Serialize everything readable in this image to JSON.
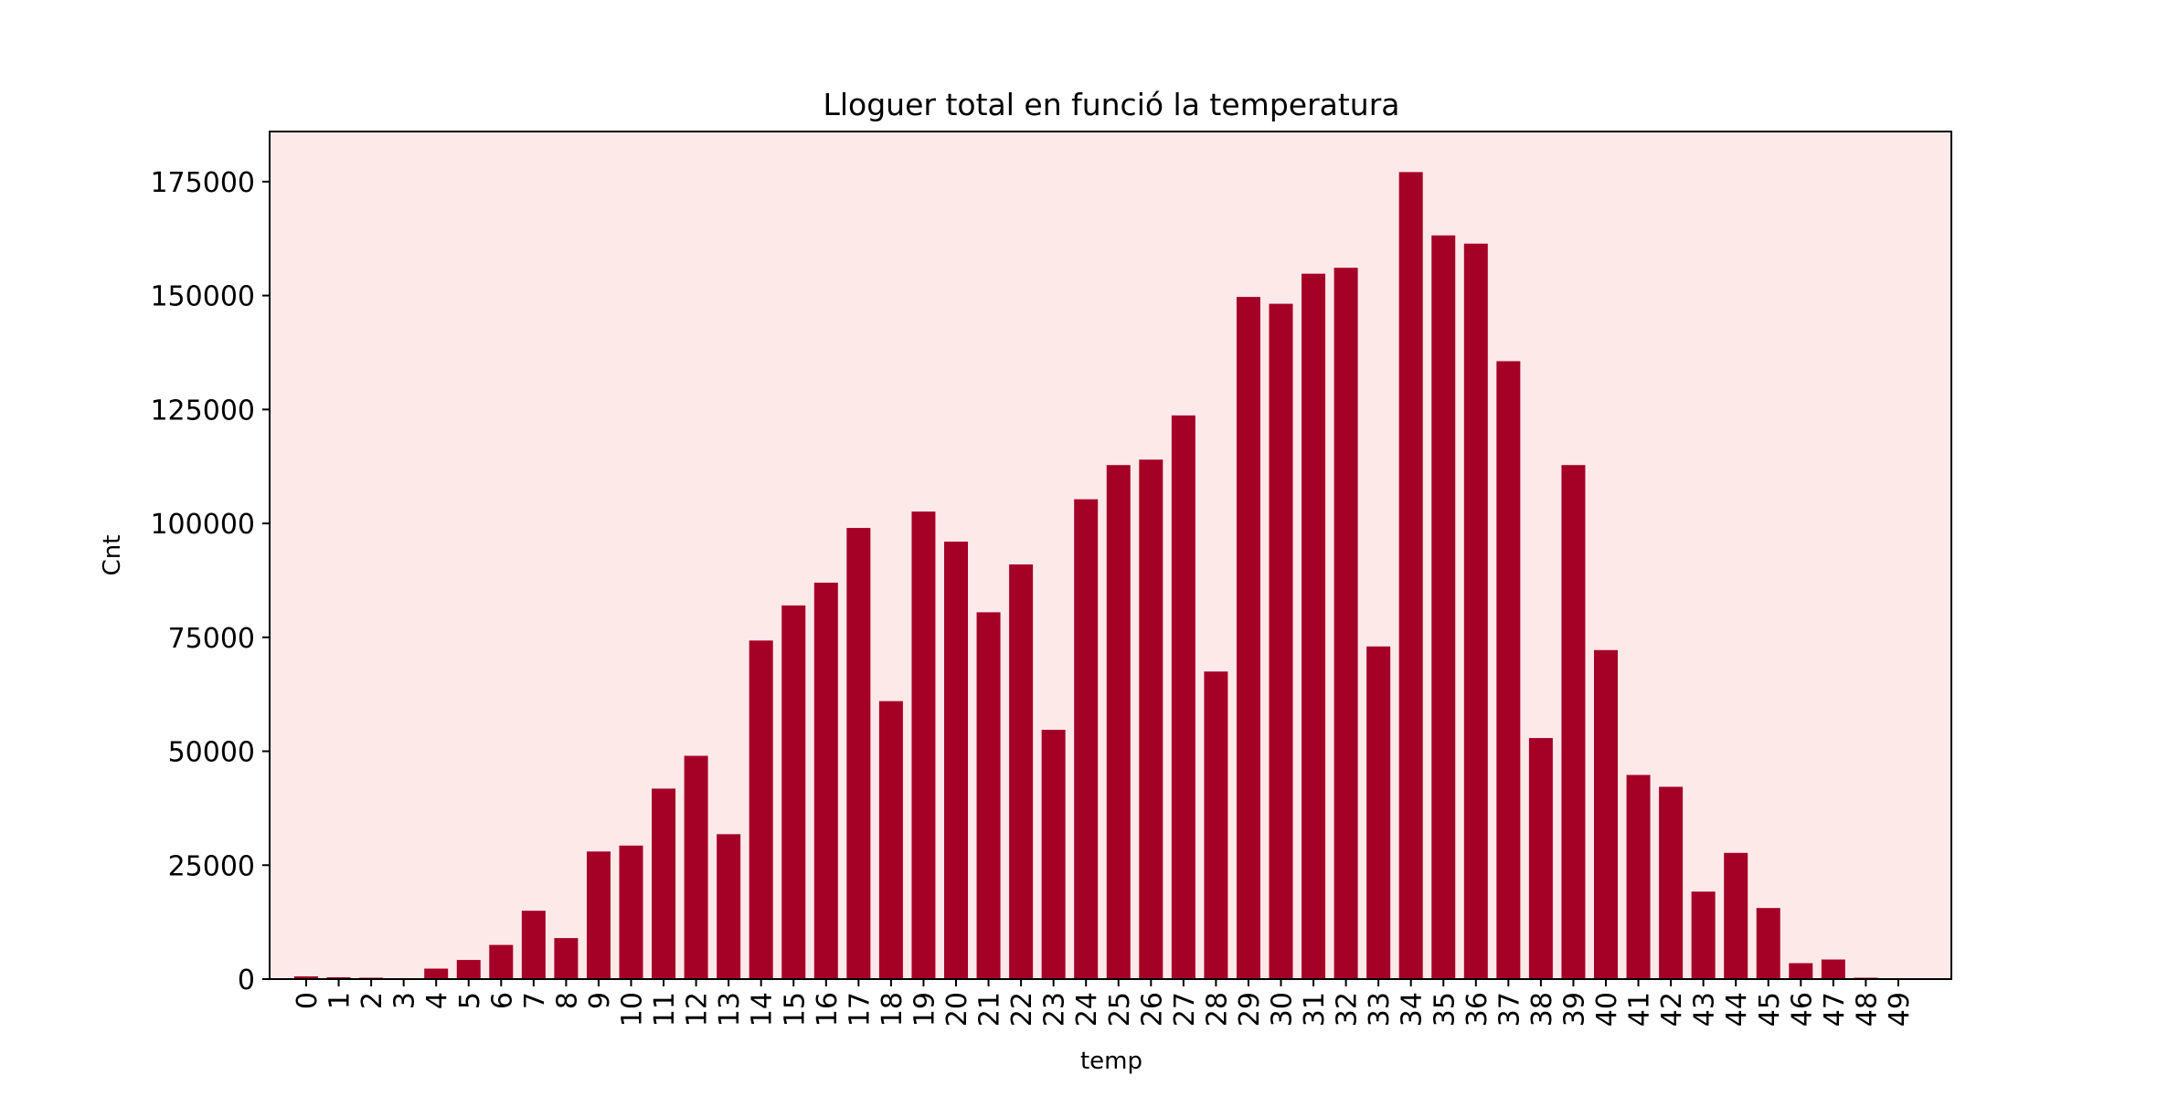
{
  "colors": {
    "bar": "#a50026",
    "plot_background": "#fee9e9",
    "axis": "#000000"
  },
  "chart_data": {
    "type": "bar",
    "title": "Lloguer total en funció la temperatura",
    "xlabel": "temp",
    "ylabel": "Cnt",
    "ylim": [
      0,
      186000
    ],
    "yticks": [
      0,
      25000,
      50000,
      75000,
      100000,
      125000,
      150000,
      175000
    ],
    "ytick_labels": [
      "0",
      "25000",
      "50000",
      "75000",
      "100000",
      "125000",
      "150000",
      "175000"
    ],
    "grid": false,
    "legend": "none",
    "categories": [
      "0",
      "1",
      "2",
      "3",
      "4",
      "5",
      "6",
      "7",
      "8",
      "9",
      "10",
      "11",
      "12",
      "13",
      "14",
      "15",
      "16",
      "17",
      "18",
      "19",
      "20",
      "21",
      "22",
      "23",
      "24",
      "25",
      "26",
      "27",
      "28",
      "29",
      "30",
      "31",
      "32",
      "33",
      "34",
      "35",
      "36",
      "37",
      "38",
      "39",
      "40",
      "41",
      "42",
      "43",
      "44",
      "45",
      "46",
      "47",
      "48",
      "49"
    ],
    "values": [
      600,
      400,
      300,
      100,
      2300,
      4200,
      7500,
      15000,
      9000,
      28000,
      29300,
      41800,
      49000,
      31800,
      74300,
      82000,
      87000,
      99000,
      61000,
      102600,
      96000,
      80500,
      91000,
      54700,
      105300,
      112800,
      114000,
      123700,
      67500,
      149700,
      148200,
      154800,
      156100,
      73000,
      177100,
      163200,
      161400,
      135600,
      52900,
      112800,
      72200,
      44800,
      42200,
      19200,
      27700,
      15600,
      3500,
      4300,
      300,
      0
    ]
  }
}
